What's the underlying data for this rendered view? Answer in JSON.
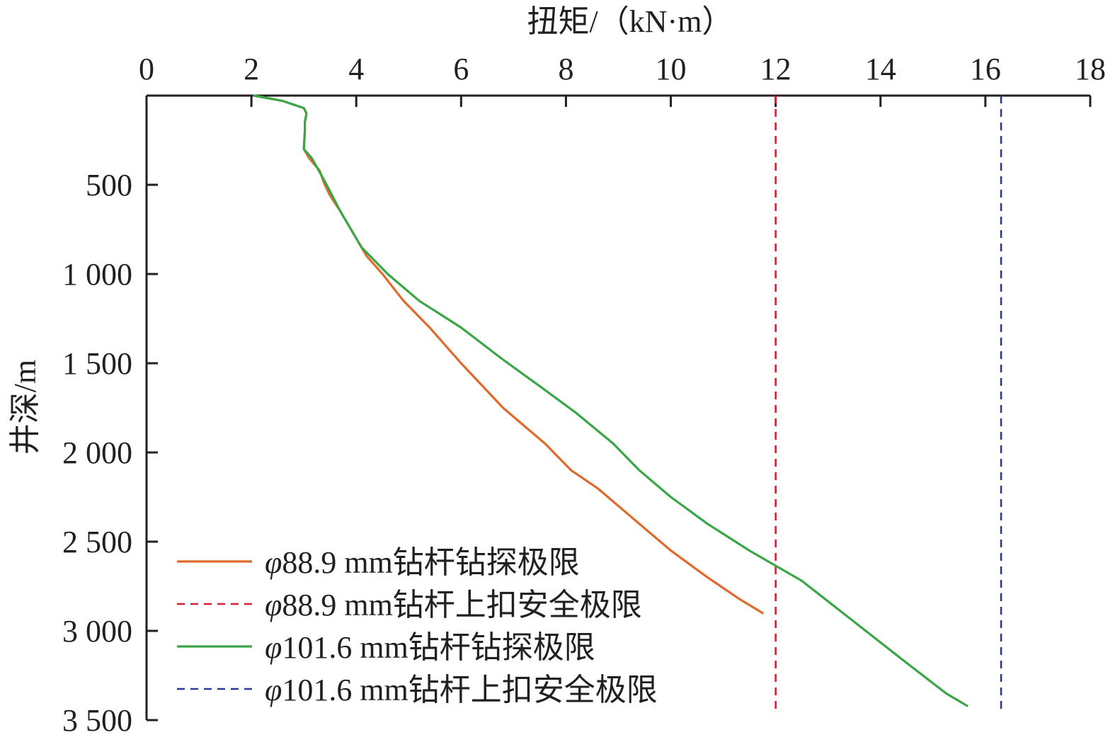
{
  "chart_data": {
    "type": "line",
    "xlabel": "扭矩/（kN·m）",
    "ylabel": "井深/m",
    "xlim": [
      0,
      18
    ],
    "ylim": [
      0,
      3500
    ],
    "x_axis_position": "top",
    "y_axis_inverted": true,
    "grid": false,
    "legend_position": "bottom-left",
    "xticks": [
      0,
      2,
      4,
      6,
      8,
      10,
      12,
      14,
      16,
      18
    ],
    "xtick_labels": [
      "0",
      "2",
      "4",
      "6",
      "8",
      "10",
      "12",
      "14",
      "16",
      "18"
    ],
    "yticks": [
      500,
      1000,
      1500,
      2000,
      2500,
      3000,
      3500
    ],
    "ytick_labels": [
      "500",
      "1 000",
      "1 500",
      "2 000",
      "2 500",
      "3 000",
      "3 500"
    ],
    "series": [
      {
        "name": "φ88.9 mm钻杆钻探极限",
        "name_symbol": "φ",
        "name_text": "88.9 mm钻杆钻探极限",
        "style": "solid",
        "color": "#e06a2c",
        "points": [
          [
            2.05,
            0
          ],
          [
            2.6,
            30
          ],
          [
            3.0,
            70
          ],
          [
            3.05,
            100
          ],
          [
            3.02,
            150
          ],
          [
            3.02,
            200
          ],
          [
            3.0,
            300
          ],
          [
            3.1,
            350
          ],
          [
            3.3,
            420
          ],
          [
            3.4,
            500
          ],
          [
            3.5,
            560
          ],
          [
            3.7,
            650
          ],
          [
            3.9,
            750
          ],
          [
            4.2,
            900
          ],
          [
            4.5,
            1000
          ],
          [
            4.9,
            1150
          ],
          [
            5.4,
            1300
          ],
          [
            6.0,
            1500
          ],
          [
            6.8,
            1750
          ],
          [
            7.6,
            1950
          ],
          [
            8.1,
            2100
          ],
          [
            8.6,
            2200
          ],
          [
            9.2,
            2350
          ],
          [
            10.0,
            2550
          ],
          [
            10.7,
            2700
          ],
          [
            11.3,
            2820
          ],
          [
            11.75,
            2900
          ]
        ]
      },
      {
        "name": "φ88.9 mm钻杆上扣安全极限",
        "name_symbol": "φ",
        "name_text": "88.9 mm钻杆上扣安全极限",
        "style": "dashed",
        "color": "#d62034",
        "x": 12
      },
      {
        "name": "φ101.6 mm钻杆钻探极限",
        "name_symbol": "φ",
        "name_text": "101.6 mm钻杆钻探极限",
        "style": "solid",
        "color": "#3aa646",
        "points": [
          [
            2.05,
            0
          ],
          [
            2.6,
            30
          ],
          [
            3.0,
            70
          ],
          [
            3.05,
            100
          ],
          [
            3.02,
            150
          ],
          [
            3.02,
            200
          ],
          [
            3.0,
            300
          ],
          [
            3.15,
            350
          ],
          [
            3.4,
            480
          ],
          [
            3.7,
            650
          ],
          [
            4.1,
            850
          ],
          [
            4.6,
            1000
          ],
          [
            5.2,
            1150
          ],
          [
            6.0,
            1300
          ],
          [
            6.8,
            1480
          ],
          [
            7.6,
            1650
          ],
          [
            8.2,
            1780
          ],
          [
            8.9,
            1950
          ],
          [
            9.4,
            2100
          ],
          [
            10.0,
            2250
          ],
          [
            10.7,
            2400
          ],
          [
            11.5,
            2550
          ],
          [
            12.5,
            2720
          ],
          [
            13.5,
            2950
          ],
          [
            14.5,
            3180
          ],
          [
            15.25,
            3350
          ],
          [
            15.65,
            3420
          ]
        ]
      },
      {
        "name": "φ101.6 mm钻杆上扣安全极限",
        "name_symbol": "φ",
        "name_text": "101.6 mm钻杆上扣安全极限",
        "style": "dashed",
        "color": "#2a3a96",
        "x": 16.3
      }
    ]
  }
}
